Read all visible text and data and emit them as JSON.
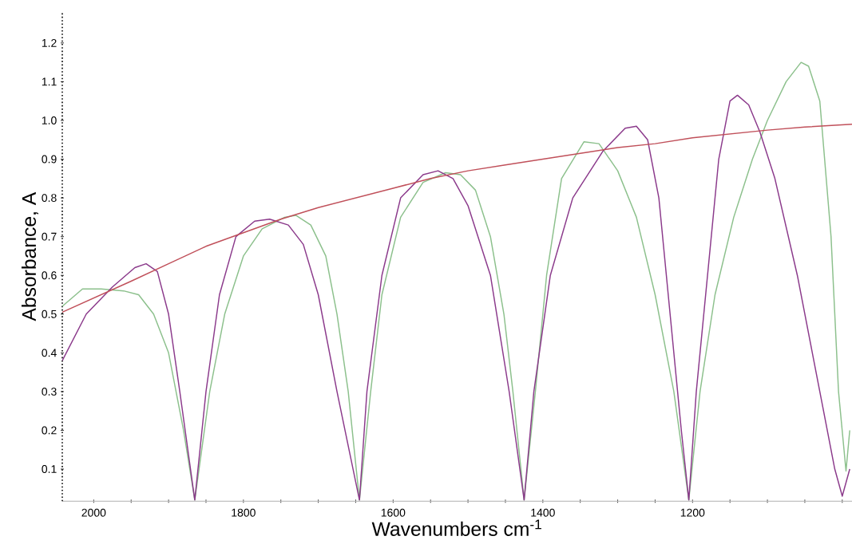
{
  "chart_data": {
    "type": "line",
    "xlabel": "Wavenumbers cm$^{-1}$",
    "ylabel": "Absorbance, A",
    "xlim": [
      2042,
      987
    ],
    "ylim": [
      0.017,
      1.28
    ],
    "xticks": [
      2000,
      {
        "value": 1950,
        "label": null
      },
      {
        "value": 1900,
        "label": null
      },
      {
        "value": 1850,
        "label": null
      },
      1800,
      {
        "value": 1750,
        "label": null
      },
      {
        "value": 1700,
        "label": null
      },
      {
        "value": 1650,
        "label": null
      },
      1600,
      {
        "value": 1550,
        "label": null
      },
      {
        "value": 1500,
        "label": null
      },
      {
        "value": 1450,
        "label": null
      },
      1400,
      {
        "value": 1350,
        "label": null
      },
      {
        "value": 1300,
        "label": null
      },
      {
        "value": 1250,
        "label": null
      },
      1200,
      {
        "value": 1150,
        "label": null
      },
      {
        "value": 1100,
        "label": null
      },
      {
        "value": 1050,
        "label": null
      },
      {
        "value": 1000,
        "label": null
      }
    ],
    "yticks": [
      0.1,
      0.2,
      0.3,
      0.4,
      0.5,
      0.6,
      0.7,
      0.8,
      0.9,
      {
        "value": 1.0,
        "label": "1.0"
      },
      1.1,
      1.2
    ],
    "marker": "none",
    "line_style": "solid",
    "series": [
      {
        "color": "#8cc08c",
        "x": [
          2042,
          2015,
          1990,
          1960,
          1940,
          1920,
          1900,
          1880,
          1865,
          1845,
          1825,
          1800,
          1775,
          1745,
          1730,
          1710,
          1690,
          1675,
          1660,
          1645,
          1630,
          1615,
          1590,
          1560,
          1530,
          1510,
          1490,
          1470,
          1452,
          1440,
          1425,
          1410,
          1395,
          1375,
          1345,
          1325,
          1300,
          1275,
          1250,
          1225,
          1205,
          1190,
          1170,
          1145,
          1120,
          1100,
          1075,
          1055,
          1045,
          1030,
          1015,
          1005,
          995,
          990
        ],
        "values": [
          0.52,
          0.565,
          0.565,
          0.56,
          0.55,
          0.5,
          0.4,
          0.2,
          0.02,
          0.3,
          0.5,
          0.65,
          0.72,
          0.75,
          0.755,
          0.73,
          0.65,
          0.5,
          0.3,
          0.02,
          0.3,
          0.55,
          0.75,
          0.84,
          0.865,
          0.86,
          0.82,
          0.7,
          0.5,
          0.3,
          0.02,
          0.3,
          0.6,
          0.85,
          0.945,
          0.94,
          0.87,
          0.75,
          0.55,
          0.3,
          0.02,
          0.3,
          0.55,
          0.75,
          0.9,
          1.0,
          1.1,
          1.15,
          1.14,
          1.05,
          0.7,
          0.3,
          0.095,
          0.2
        ]
      },
      {
        "color": "#8b3a8b",
        "x": [
          2042,
          2010,
          1975,
          1945,
          1930,
          1915,
          1900,
          1885,
          1865,
          1850,
          1832,
          1810,
          1785,
          1765,
          1740,
          1720,
          1700,
          1675,
          1645,
          1635,
          1615,
          1590,
          1560,
          1540,
          1520,
          1500,
          1470,
          1445,
          1425,
          1412,
          1390,
          1360,
          1320,
          1290,
          1275,
          1260,
          1245,
          1230,
          1215,
          1205,
          1195,
          1180,
          1165,
          1150,
          1140,
          1125,
          1110,
          1090,
          1060,
          1030,
          1010,
          1000,
          990
        ],
        "values": [
          0.38,
          0.5,
          0.57,
          0.62,
          0.63,
          0.61,
          0.5,
          0.3,
          0.02,
          0.3,
          0.55,
          0.7,
          0.74,
          0.745,
          0.73,
          0.68,
          0.55,
          0.3,
          0.02,
          0.3,
          0.6,
          0.8,
          0.86,
          0.87,
          0.85,
          0.78,
          0.6,
          0.3,
          0.02,
          0.3,
          0.6,
          0.8,
          0.92,
          0.98,
          0.985,
          0.95,
          0.8,
          0.5,
          0.2,
          0.02,
          0.3,
          0.6,
          0.9,
          1.05,
          1.065,
          1.04,
          0.97,
          0.85,
          0.6,
          0.3,
          0.1,
          0.03,
          0.1
        ]
      },
      {
        "color": "#c0505a",
        "x": [
          2042,
          1950,
          1900,
          1850,
          1800,
          1750,
          1700,
          1650,
          1600,
          1550,
          1500,
          1450,
          1400,
          1350,
          1300,
          1250,
          1200,
          1150,
          1100,
          1050,
          987
        ],
        "values": [
          0.505,
          0.585,
          0.63,
          0.675,
          0.71,
          0.745,
          0.775,
          0.8,
          0.825,
          0.85,
          0.87,
          0.885,
          0.9,
          0.915,
          0.93,
          0.94,
          0.955,
          0.965,
          0.975,
          0.983,
          0.99
        ]
      }
    ]
  }
}
